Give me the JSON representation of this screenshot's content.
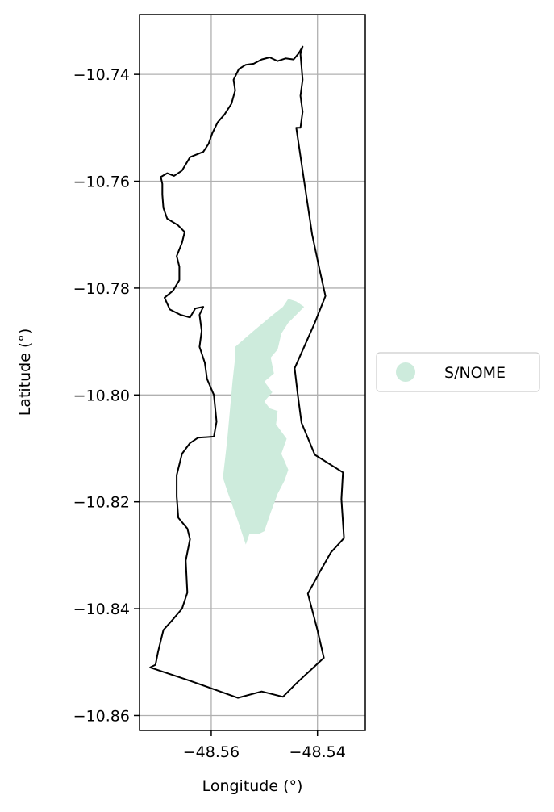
{
  "chart_data": {
    "type": "map",
    "title": "",
    "xlabel": "Longitude (°)",
    "ylabel": "Latitude (°)",
    "xlim": [
      -48.5735,
      -48.531
    ],
    "ylim": [
      -10.8628,
      -10.7288
    ],
    "xticks": [
      -48.56,
      -48.54
    ],
    "xtick_labels": [
      "−48.56",
      "−48.54"
    ],
    "yticks": [
      -10.74,
      -10.76,
      -10.78,
      -10.8,
      -10.82,
      -10.84,
      -10.86
    ],
    "ytick_labels": [
      "−10.74",
      "−10.76",
      "−10.78",
      "−10.80",
      "−10.82",
      "−10.84",
      "−10.86"
    ],
    "grid": true,
    "legend_position": "center-right, outside",
    "boundary_color": "#000000",
    "legend": [
      {
        "label": "S/NOME",
        "color": "#cdebdc"
      }
    ],
    "boundary": [
      [
        -48.5428,
        -10.7348
      ],
      [
        -48.5432,
        -10.7362
      ],
      [
        -48.543,
        -10.7385
      ],
      [
        -48.5428,
        -10.741
      ],
      [
        -48.5432,
        -10.744
      ],
      [
        -48.5428,
        -10.747
      ],
      [
        -48.5432,
        -10.75
      ],
      [
        -48.544,
        -10.75
      ],
      [
        -48.5425,
        -10.76
      ],
      [
        -48.541,
        -10.77
      ],
      [
        -48.5395,
        -10.777
      ],
      [
        -48.5385,
        -10.7815
      ],
      [
        -48.5405,
        -10.7865
      ],
      [
        -48.5425,
        -10.791
      ],
      [
        -48.5443,
        -10.795
      ],
      [
        -48.5437,
        -10.8
      ],
      [
        -48.543,
        -10.8052
      ],
      [
        -48.5405,
        -10.8112
      ],
      [
        -48.5352,
        -10.8145
      ],
      [
        -48.5355,
        -10.8195
      ],
      [
        -48.535,
        -10.8268
      ],
      [
        -48.5375,
        -10.8295
      ],
      [
        -48.5395,
        -10.833
      ],
      [
        -48.5418,
        -10.8372
      ],
      [
        -48.54,
        -10.844
      ],
      [
        -48.5388,
        -10.8492
      ],
      [
        -48.544,
        -10.854
      ],
      [
        -48.5465,
        -10.8565
      ],
      [
        -48.5505,
        -10.8555
      ],
      [
        -48.555,
        -10.8567
      ],
      [
        -48.564,
        -10.8535
      ],
      [
        -48.5715,
        -10.851
      ],
      [
        -48.5705,
        -10.8505
      ],
      [
        -48.57,
        -10.848
      ],
      [
        -48.569,
        -10.844
      ],
      [
        -48.5672,
        -10.842
      ],
      [
        -48.5655,
        -10.84
      ],
      [
        -48.5645,
        -10.837
      ],
      [
        -48.5648,
        -10.831
      ],
      [
        -48.564,
        -10.827
      ],
      [
        -48.5645,
        -10.825
      ],
      [
        -48.5662,
        -10.823
      ],
      [
        -48.5665,
        -10.819
      ],
      [
        -48.5665,
        -10.815
      ],
      [
        -48.5655,
        -10.811
      ],
      [
        -48.564,
        -10.809
      ],
      [
        -48.5625,
        -10.808
      ],
      [
        -48.5595,
        -10.8078
      ],
      [
        -48.559,
        -10.805
      ],
      [
        -48.5595,
        -10.8
      ],
      [
        -48.5608,
        -10.797
      ],
      [
        -48.5612,
        -10.794
      ],
      [
        -48.5622,
        -10.791
      ],
      [
        -48.5618,
        -10.788
      ],
      [
        -48.5622,
        -10.785
      ],
      [
        -48.5615,
        -10.7835
      ],
      [
        -48.563,
        -10.7838
      ],
      [
        -48.564,
        -10.7855
      ],
      [
        -48.5658,
        -10.785
      ],
      [
        -48.5678,
        -10.784
      ],
      [
        -48.5688,
        -10.7818
      ],
      [
        -48.5672,
        -10.7805
      ],
      [
        -48.566,
        -10.7785
      ],
      [
        -48.566,
        -10.776
      ],
      [
        -48.5665,
        -10.774
      ],
      [
        -48.5655,
        -10.7715
      ],
      [
        -48.565,
        -10.7695
      ],
      [
        -48.5663,
        -10.7682
      ],
      [
        -48.5683,
        -10.767
      ],
      [
        -48.569,
        -10.765
      ],
      [
        -48.5692,
        -10.7625
      ],
      [
        -48.5692,
        -10.7605
      ],
      [
        -48.5695,
        -10.7592
      ],
      [
        -48.5683,
        -10.7585
      ],
      [
        -48.567,
        -10.759
      ],
      [
        -48.5655,
        -10.758
      ],
      [
        -48.564,
        -10.7555
      ],
      [
        -48.5615,
        -10.7545
      ],
      [
        -48.5605,
        -10.753
      ],
      [
        -48.5598,
        -10.751
      ],
      [
        -48.5588,
        -10.749
      ],
      [
        -48.5575,
        -10.7475
      ],
      [
        -48.5562,
        -10.7455
      ],
      [
        -48.5555,
        -10.743
      ],
      [
        -48.5558,
        -10.741
      ],
      [
        -48.5548,
        -10.739
      ],
      [
        -48.5535,
        -10.7382
      ],
      [
        -48.552,
        -10.738
      ],
      [
        -48.5505,
        -10.7372
      ],
      [
        -48.549,
        -10.7368
      ],
      [
        -48.5475,
        -10.7375
      ],
      [
        -48.546,
        -10.737
      ],
      [
        -48.5445,
        -10.7372
      ],
      [
        -48.5435,
        -10.736
      ],
      [
        -48.5428,
        -10.7348
      ]
    ],
    "regions": [
      {
        "label": "S/NOME",
        "color": "#cdebdc",
        "polygon": [
          [
            -48.5555,
            -10.791
          ],
          [
            -48.552,
            -10.788
          ],
          [
            -48.549,
            -10.7855
          ],
          [
            -48.5465,
            -10.7835
          ],
          [
            -48.5455,
            -10.782
          ],
          [
            -48.544,
            -10.7825
          ],
          [
            -48.5425,
            -10.7835
          ],
          [
            -48.544,
            -10.785
          ],
          [
            -48.5455,
            -10.7865
          ],
          [
            -48.5468,
            -10.7885
          ],
          [
            -48.5475,
            -10.7915
          ],
          [
            -48.5488,
            -10.793
          ],
          [
            -48.5482,
            -10.796
          ],
          [
            -48.55,
            -10.7975
          ],
          [
            -48.5485,
            -10.7995
          ],
          [
            -48.55,
            -10.8012
          ],
          [
            -48.549,
            -10.8025
          ],
          [
            -48.5475,
            -10.803
          ],
          [
            -48.5478,
            -10.8055
          ],
          [
            -48.5458,
            -10.8082
          ],
          [
            -48.5468,
            -10.811
          ],
          [
            -48.5455,
            -10.814
          ],
          [
            -48.5462,
            -10.816
          ],
          [
            -48.5475,
            -10.8185
          ],
          [
            -48.5488,
            -10.822
          ],
          [
            -48.55,
            -10.8255
          ],
          [
            -48.551,
            -10.826
          ],
          [
            -48.5528,
            -10.826
          ],
          [
            -48.5535,
            -10.828
          ],
          [
            -48.555,
            -10.8235
          ],
          [
            -48.5568,
            -10.8185
          ],
          [
            -48.5578,
            -10.8155
          ],
          [
            -48.557,
            -10.8085
          ],
          [
            -48.5565,
            -10.803
          ],
          [
            -48.556,
            -10.7975
          ],
          [
            -48.5555,
            -10.793
          ],
          [
            -48.5555,
            -10.791
          ]
        ]
      }
    ]
  }
}
